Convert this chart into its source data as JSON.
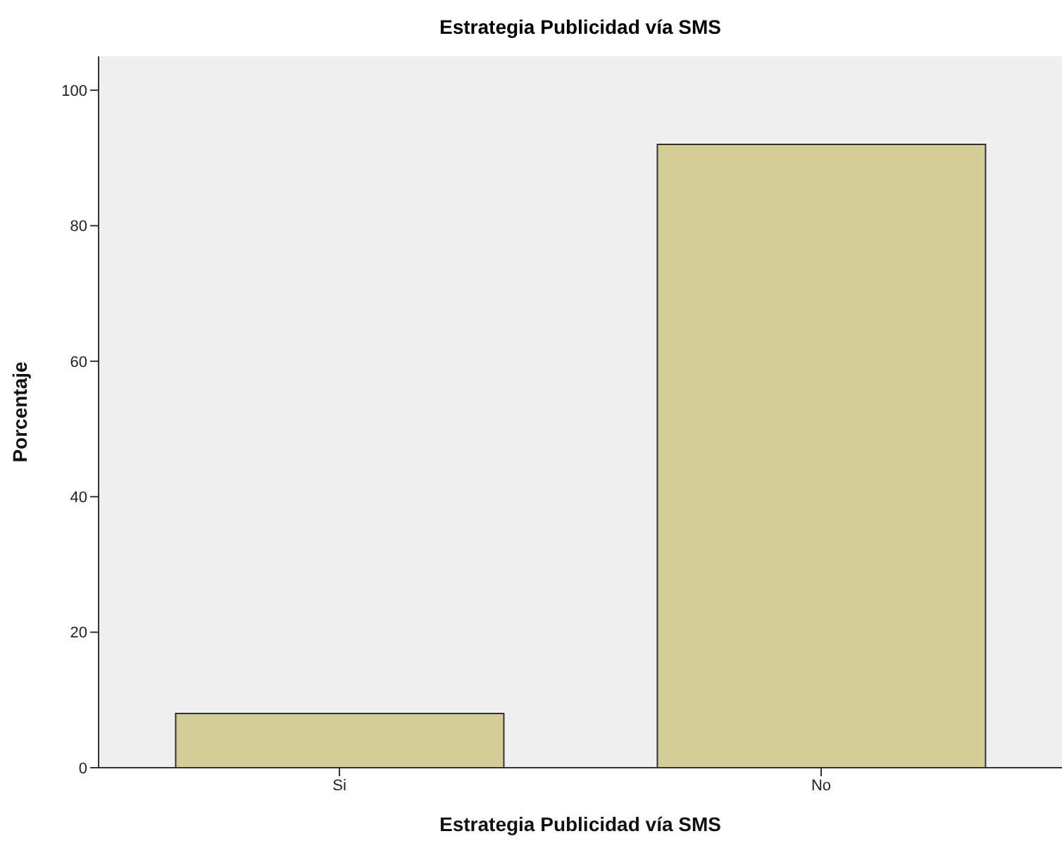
{
  "chart_data": {
    "type": "bar",
    "title": "Estrategia Publicidad vía SMS",
    "xlabel": "Estrategia Publicidad vía SMS",
    "ylabel": "Porcentaje",
    "categories": [
      "Si",
      "No"
    ],
    "values": [
      8,
      92
    ],
    "color": "#d3ce98",
    "ylim": [
      0,
      105
    ],
    "yticks": [
      0,
      20,
      40,
      60,
      80,
      100
    ]
  }
}
